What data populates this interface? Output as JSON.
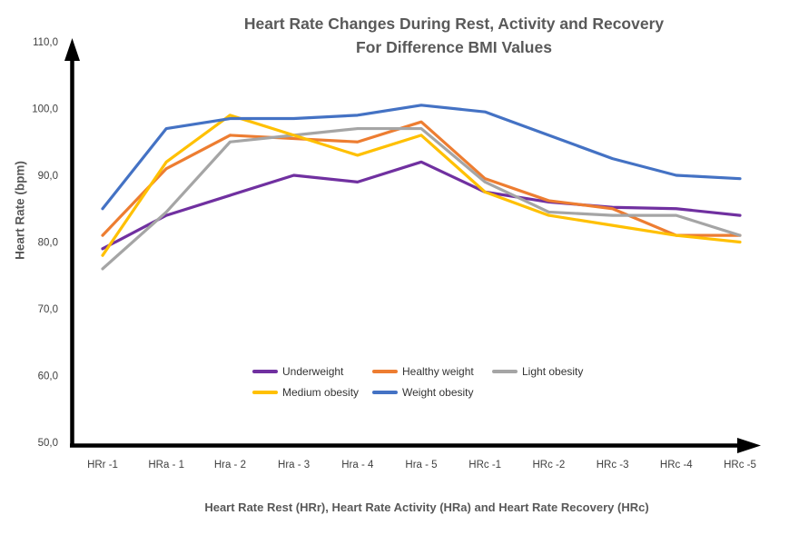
{
  "title": {
    "line1": "Heart Rate Changes During Rest, Activity and Recovery",
    "line2": "For Difference BMI Values"
  },
  "chart_data": {
    "type": "line",
    "title": "Heart Rate Changes During Rest, Activity and Recovery For Difference BMI Values",
    "xlabel": "Heart Rate Rest (HRr),  Heart Rate Activity (HRa) and  Heart Rate Recovery (HRc)",
    "ylabel": "Heart Rate (bpm)",
    "categories": [
      "HRr -1",
      "HRa - 1",
      "Hra - 2",
      "Hra - 3",
      "Hra - 4",
      "Hra - 5",
      "HRc -1",
      "HRc -2",
      "HRc -3",
      "HRc -4",
      "HRc -5"
    ],
    "y_ticks": [
      "110,0",
      "100,0",
      "90,0",
      "80,0",
      "70,0",
      "60,0",
      "50,0"
    ],
    "ylim": [
      50,
      110
    ],
    "grid": false,
    "legend_position": "bottom-center-inside",
    "axis_color": "#000000",
    "series": [
      {
        "name": "Underweight",
        "color": "#7030A0",
        "values": [
          79,
          84,
          87,
          90,
          89,
          92,
          87.5,
          86,
          85.2,
          85,
          84
        ]
      },
      {
        "name": "Healthy weight",
        "color": "#ED7D31",
        "values": [
          81,
          91,
          96,
          95.5,
          95,
          98,
          89.5,
          86.2,
          85,
          81,
          81
        ]
      },
      {
        "name": "Light obesity",
        "color": "#A5A5A5",
        "values": [
          76,
          84.5,
          95,
          96,
          97,
          97,
          89,
          84.5,
          84,
          84,
          81
        ]
      },
      {
        "name": "Medium obesity",
        "color": "#FFC000",
        "values": [
          78,
          92,
          99,
          96,
          93,
          96,
          87.5,
          84,
          82.5,
          81,
          80
        ]
      },
      {
        "name": "Weight obesity",
        "color": "#4472C4",
        "values": [
          85,
          97,
          98.5,
          98.5,
          99,
          100.5,
          99.5,
          96,
          92.5,
          90,
          89.5
        ]
      }
    ]
  }
}
